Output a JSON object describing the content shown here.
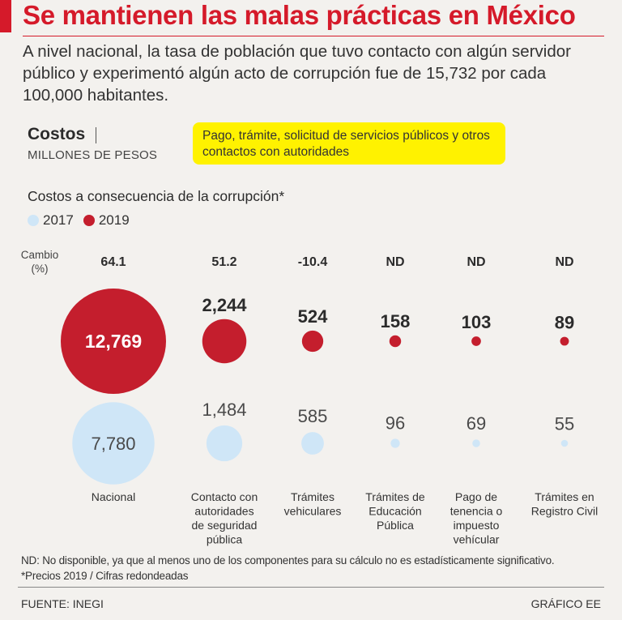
{
  "header": {
    "title": "Se mantienen las malas prácticas en México",
    "subtitle": "A nivel nacional, la tasa de población que tuvo contacto con algún servidor público y experimentó algún acto de corrupción fue de 15,732 por cada 100,000 habitantes."
  },
  "costos": {
    "title": "Costos",
    "unit": "MILLONES DE PESOS",
    "note": "Pago, trámite, solicitud de servicios públicos y otros contactos con autoridades"
  },
  "chart_data": {
    "type": "bubble",
    "title": "Costos a consecuencia de la corrupción*",
    "cambio_label": "Cambio (%)",
    "categories": [
      [
        "Nacional"
      ],
      [
        "Contacto con",
        "autoridades",
        "de seguridad",
        "pública"
      ],
      [
        "Trámites",
        "vehiculares"
      ],
      [
        "Trámites de",
        "Educación",
        "Pública"
      ],
      [
        "Pago de",
        "tenencia o",
        "impuesto",
        "vehícular"
      ],
      [
        "Trámites en",
        "Registro Civil"
      ]
    ],
    "cambio": [
      "64.1",
      "51.2",
      "-10.4",
      "ND",
      "ND",
      "ND"
    ],
    "series": [
      {
        "name": "2019",
        "color": "#c41e2d",
        "values": [
          12769,
          2244,
          524,
          158,
          103,
          89
        ],
        "labels": [
          "12,769",
          "2,244",
          "524",
          "158",
          "103",
          "89"
        ]
      },
      {
        "name": "2017",
        "color": "#cfe6f7",
        "values": [
          7780,
          1484,
          585,
          96,
          69,
          55
        ],
        "labels": [
          "7,780",
          "1,484",
          "585",
          "96",
          "69",
          "55"
        ]
      }
    ],
    "legend": [
      "2017",
      "2019"
    ]
  },
  "footnotes": {
    "nd": "ND: No disponible, ya que al menos uno de los componentes para su cálculo no es estadísticamente significativo.",
    "prices": "*Precios 2019 / Cifras redondeadas"
  },
  "footer": {
    "source": "FUENTE: INEGI",
    "credit": "GRÁFICO EE"
  }
}
